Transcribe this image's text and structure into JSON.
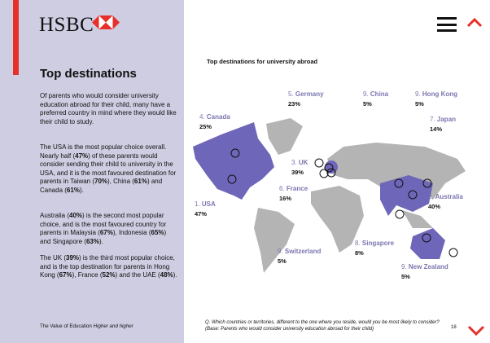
{
  "brand": {
    "name": "HSBC"
  },
  "sidebar": {
    "title": "Top destinations",
    "paragraphs": [
      [
        {
          "t": "Of parents who would consider university education abroad for their child, many have a preferred country in mind where they would like their child to study."
        }
      ],
      [
        {
          "t": "The USA is the most popular choice overall. Nearly half ("
        },
        {
          "b": "47%"
        },
        {
          "t": ") of these parents would consider sending their child to university in the USA, and it is the most favoured destination for parents in Taiwan ("
        },
        {
          "b": "70%"
        },
        {
          "t": "), China ("
        },
        {
          "b": "61%"
        },
        {
          "t": ") and Canada ("
        },
        {
          "b": "61%"
        },
        {
          "t": ")."
        }
      ],
      [
        {
          "t": "Australia ("
        },
        {
          "b": "40%"
        },
        {
          "t": ") is the second most popular choice, and is the most favoured country for parents in Malaysia ("
        },
        {
          "b": "67%"
        },
        {
          "t": "), Indonesia ("
        },
        {
          "b": "65%"
        },
        {
          "t": ") and Singapore ("
        },
        {
          "b": "63%"
        },
        {
          "t": ")."
        }
      ],
      [
        {
          "t": "The UK ("
        },
        {
          "b": "39%"
        },
        {
          "t": ") is the third most popular choice, and is the top destination for parents in Hong Kong ("
        },
        {
          "b": "67%"
        },
        {
          "t": "), France ("
        },
        {
          "b": "52%"
        },
        {
          "t": ") and the UAE ("
        },
        {
          "b": "48%"
        },
        {
          "t": ")."
        }
      ]
    ],
    "footer": "The Value of Education",
    "footer_italic": "Higher and higher"
  },
  "chart": {
    "title": "Top destinations for university abroad",
    "destinations": [
      {
        "rank": "1.",
        "name": "USA",
        "pct": "47%"
      },
      {
        "rank": "2.",
        "name": "Australia",
        "pct": "40%"
      },
      {
        "rank": "3.",
        "name": "UK",
        "pct": "39%"
      },
      {
        "rank": "4.",
        "name": "Canada",
        "pct": "25%"
      },
      {
        "rank": "5.",
        "name": "Germany",
        "pct": "23%"
      },
      {
        "rank": "6.",
        "name": "France",
        "pct": "16%"
      },
      {
        "rank": "7.",
        "name": "Japan",
        "pct": "14%"
      },
      {
        "rank": "8.",
        "name": "Singapore",
        "pct": "8%"
      },
      {
        "rank": "9.",
        "name": "China",
        "pct": "5%"
      },
      {
        "rank": "9.",
        "name": "Hong Kong",
        "pct": "5%"
      },
      {
        "rank": "9.",
        "name": "Switzerland",
        "pct": "5%"
      },
      {
        "rank": "9.",
        "name": "New Zealand",
        "pct": "5%"
      }
    ],
    "question": "Q. Which countries or territories, different to the one where you reside, would you be most likely to consider? (Base: Parents who would consider university education abroad for their child)",
    "colors": {
      "highlight": "#6e66b8",
      "land": "#b4b4b4",
      "label": "#7b76b0"
    }
  },
  "page_number": "18"
}
